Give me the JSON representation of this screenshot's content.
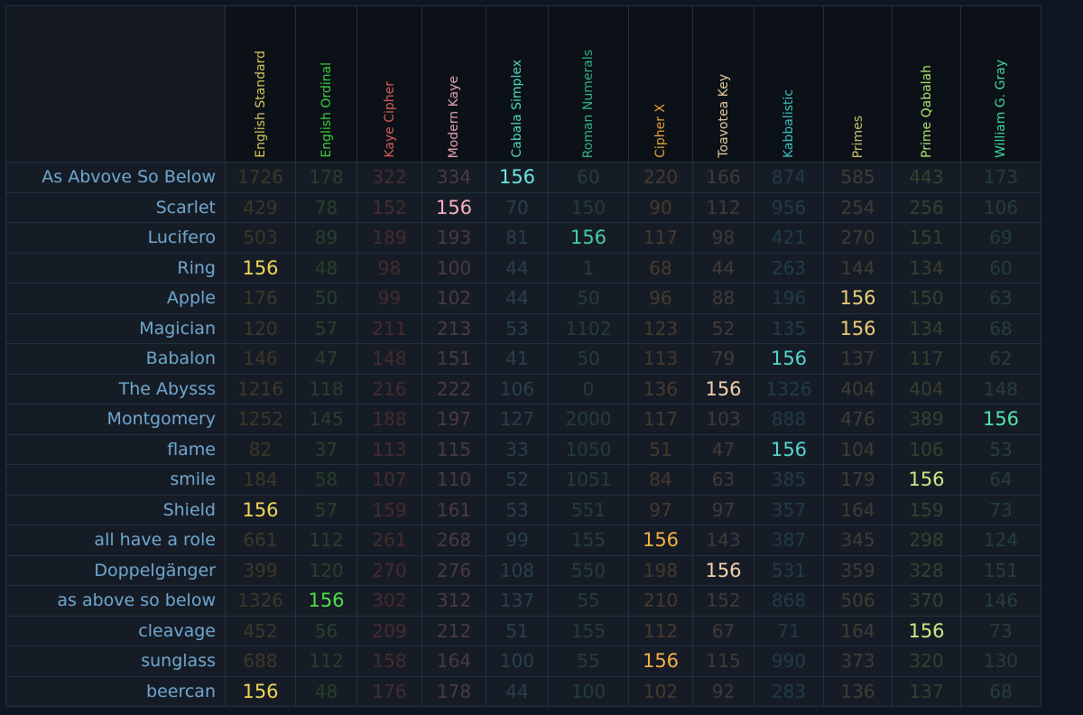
{
  "ciphers": [
    {
      "name": "English Standard",
      "header_color": "#d6c45c",
      "dim_color": "#3c3826",
      "hit_color": "#f0d65c"
    },
    {
      "name": "English Ordinal",
      "header_color": "#3fcf3f",
      "dim_color": "#27402a",
      "hit_color": "#4fe04a"
    },
    {
      "name": "Kaye Cipher",
      "header_color": "#d75a5a",
      "dim_color": "#462a2e",
      "hit_color": "#e87070"
    },
    {
      "name": "Modern Kaye",
      "header_color": "#e8a0ae",
      "dim_color": "#4a3a40",
      "hit_color": "#f5b2be"
    },
    {
      "name": "Cabala Simplex",
      "header_color": "#4fd6c8",
      "dim_color": "#284048",
      "hit_color": "#6ae5dc"
    },
    {
      "name": "Roman Numerals",
      "header_color": "#33b088",
      "dim_color": "#233e36",
      "hit_color": "#45cf9e"
    },
    {
      "name": "Cipher X",
      "header_color": "#e8a040",
      "dim_color": "#453a2c",
      "hit_color": "#f5b049"
    },
    {
      "name": "Toavotea Key",
      "header_color": "#e8c8a0",
      "dim_color": "#403a38",
      "hit_color": "#f2d2ad"
    },
    {
      "name": "Kabbalistic",
      "header_color": "#3fc0c0",
      "dim_color": "#203c44",
      "hit_color": "#55d8d0"
    },
    {
      "name": "Primes",
      "header_color": "#c8c070",
      "dim_color": "#3e3c34",
      "hit_color": "#eacd78"
    },
    {
      "name": "Prime Qabalah",
      "header_color": "#b0e070",
      "dim_color": "#36402e",
      "hit_color": "#c8ec85"
    },
    {
      "name": "William G. Gray",
      "header_color": "#3fd6a0",
      "dim_color": "#243e38",
      "hit_color": "#52e5a8"
    }
  ],
  "rows": [
    {
      "phrase": "As Abvove So Below",
      "values": [
        1726,
        178,
        322,
        334,
        156,
        60,
        220,
        166,
        874,
        585,
        443,
        173
      ]
    },
    {
      "phrase": "Scarlet",
      "values": [
        429,
        78,
        152,
        156,
        70,
        150,
        90,
        112,
        956,
        254,
        256,
        106
      ]
    },
    {
      "phrase": "Lucifero",
      "values": [
        503,
        89,
        189,
        193,
        81,
        156,
        117,
        98,
        421,
        270,
        151,
        69
      ]
    },
    {
      "phrase": "Ring",
      "values": [
        156,
        48,
        98,
        100,
        44,
        1,
        68,
        44,
        263,
        144,
        134,
        60
      ]
    },
    {
      "phrase": "Apple",
      "values": [
        176,
        50,
        99,
        102,
        44,
        50,
        96,
        88,
        196,
        156,
        150,
        63
      ]
    },
    {
      "phrase": "Magician",
      "values": [
        120,
        57,
        211,
        213,
        53,
        1102,
        123,
        52,
        135,
        156,
        134,
        68
      ]
    },
    {
      "phrase": "Babalon",
      "values": [
        146,
        47,
        148,
        151,
        41,
        50,
        113,
        79,
        156,
        137,
        117,
        62
      ]
    },
    {
      "phrase": "The Abysss",
      "values": [
        1216,
        118,
        216,
        222,
        106,
        0,
        136,
        156,
        1326,
        404,
        404,
        148
      ]
    },
    {
      "phrase": "Montgomery",
      "values": [
        1252,
        145,
        188,
        197,
        127,
        2000,
        117,
        103,
        888,
        476,
        389,
        156
      ]
    },
    {
      "phrase": "flame",
      "values": [
        82,
        37,
        113,
        115,
        33,
        1050,
        51,
        47,
        156,
        104,
        106,
        53
      ]
    },
    {
      "phrase": "smile",
      "values": [
        184,
        58,
        107,
        110,
        52,
        1051,
        84,
        63,
        385,
        179,
        156,
        64
      ]
    },
    {
      "phrase": "Shield",
      "values": [
        156,
        57,
        159,
        161,
        53,
        551,
        97,
        97,
        357,
        164,
        159,
        73
      ]
    },
    {
      "phrase": "all have a role",
      "values": [
        661,
        112,
        261,
        268,
        99,
        155,
        156,
        143,
        387,
        345,
        298,
        124
      ]
    },
    {
      "phrase": "Doppelgänger",
      "values": [
        399,
        120,
        270,
        276,
        108,
        550,
        198,
        156,
        531,
        359,
        328,
        151
      ]
    },
    {
      "phrase": "as above so below",
      "values": [
        1326,
        156,
        302,
        312,
        137,
        55,
        210,
        152,
        868,
        506,
        370,
        146
      ]
    },
    {
      "phrase": "cleavage",
      "values": [
        452,
        56,
        209,
        212,
        51,
        155,
        112,
        67,
        71,
        164,
        156,
        73
      ]
    },
    {
      "phrase": "sunglass",
      "values": [
        688,
        112,
        158,
        164,
        100,
        55,
        156,
        115,
        990,
        373,
        320,
        130
      ]
    },
    {
      "phrase": "beercan",
      "values": [
        156,
        48,
        176,
        178,
        44,
        100,
        102,
        92,
        283,
        136,
        137,
        68
      ]
    }
  ],
  "highlight_value": 156
}
